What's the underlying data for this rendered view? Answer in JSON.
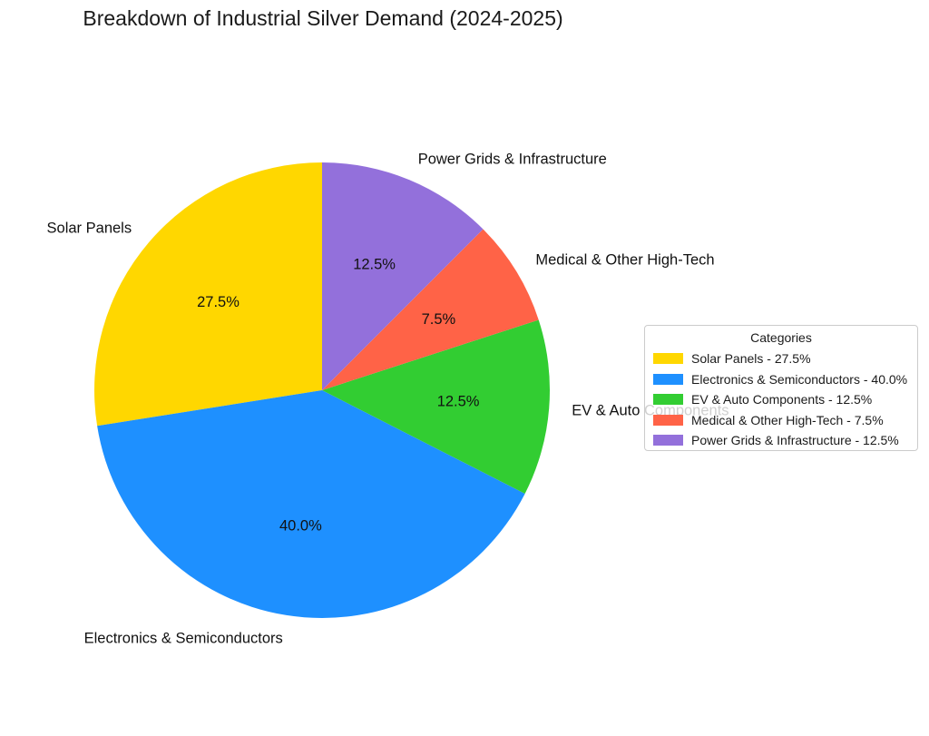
{
  "title": "Breakdown of Industrial Silver Demand (2024-2025)",
  "chart_data": {
    "type": "pie",
    "title": "Breakdown of Industrial Silver Demand (2024-2025)",
    "categories": [
      "Solar Panels",
      "Electronics & Semiconductors",
      "EV & Auto Components",
      "Medical & Other High-Tech",
      "Power Grids & Infrastructure"
    ],
    "values": [
      27.5,
      40.0,
      12.5,
      7.5,
      12.5
    ],
    "unit": "%",
    "slice_value_labels": [
      "27.5%",
      "40.0%",
      "12.5%",
      "7.5%",
      "12.5%"
    ],
    "colors": [
      "#FFD700",
      "#1E90FF",
      "#32CD32",
      "#FF6347",
      "#9370DB"
    ],
    "start_angle": 90,
    "direction": "counterclockwise",
    "background": "#ffffff",
    "legend": {
      "title": "Categories",
      "position": "center right",
      "entries": [
        "Solar Panels - 27.5%",
        "Electronics & Semiconductors - 40.0%",
        "EV & Auto Components - 12.5%",
        "Medical & Other High-Tech - 7.5%",
        "Power Grids & Infrastructure - 12.5%"
      ]
    }
  }
}
